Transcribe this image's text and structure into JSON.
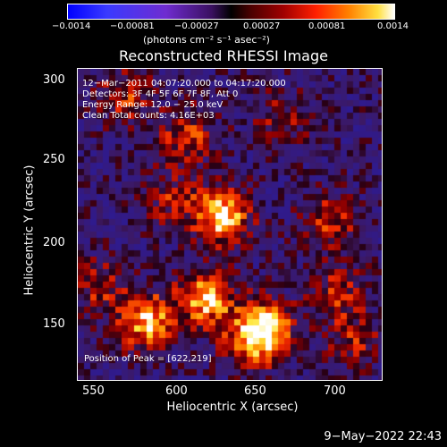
{
  "colorbar": {
    "ticks": [
      "−0.0014",
      "−0.00081",
      "−0.00027",
      "0.00027",
      "0.00081",
      "0.0014"
    ],
    "unit": "(photons cm⁻² s⁻¹ asec⁻²)"
  },
  "title": "Reconstructed RHESSI Image",
  "info": {
    "time": "12−Mar−2011 04:07:20.000 to 04:17:20.000",
    "detectors": "Detectors: 3F 4F 5F 6F 7F 8F, Att 0",
    "energy": "Energy Range: 12.0 − 25.0 keV",
    "clean": "Clean    Total counts: 4.16E+03",
    "peak": "Position of Peak = [622,219]"
  },
  "axes": {
    "xlabel": "Heliocentric X (arcsec)",
    "ylabel": "Heliocentric Y (arcsec)",
    "xticks": [
      "550",
      "600",
      "650",
      "700"
    ],
    "yticks": [
      "300",
      "250",
      "200",
      "150"
    ],
    "xlim": [
      533,
      725
    ],
    "ylim": [
      113,
      310
    ]
  },
  "footer": {
    "date": "9−May−2022 22:43"
  },
  "image": {
    "sources": [
      {
        "x": 622,
        "y": 219,
        "amp": 1.0
      },
      {
        "x": 612,
        "y": 167,
        "amp": 0.95
      },
      {
        "x": 575,
        "y": 152,
        "amp": 0.9
      },
      {
        "x": 650,
        "y": 148,
        "amp": 0.85
      },
      {
        "x": 640,
        "y": 140,
        "amp": 0.6
      },
      {
        "x": 600,
        "y": 270,
        "amp": 0.55
      },
      {
        "x": 560,
        "y": 295,
        "amp": 0.5
      },
      {
        "x": 690,
        "y": 215,
        "amp": 0.5
      },
      {
        "x": 695,
        "y": 170,
        "amp": 0.45
      },
      {
        "x": 705,
        "y": 140,
        "amp": 0.4
      },
      {
        "x": 545,
        "y": 175,
        "amp": 0.45
      },
      {
        "x": 660,
        "y": 280,
        "amp": 0.35
      },
      {
        "x": 590,
        "y": 230,
        "amp": 0.4
      }
    ]
  }
}
